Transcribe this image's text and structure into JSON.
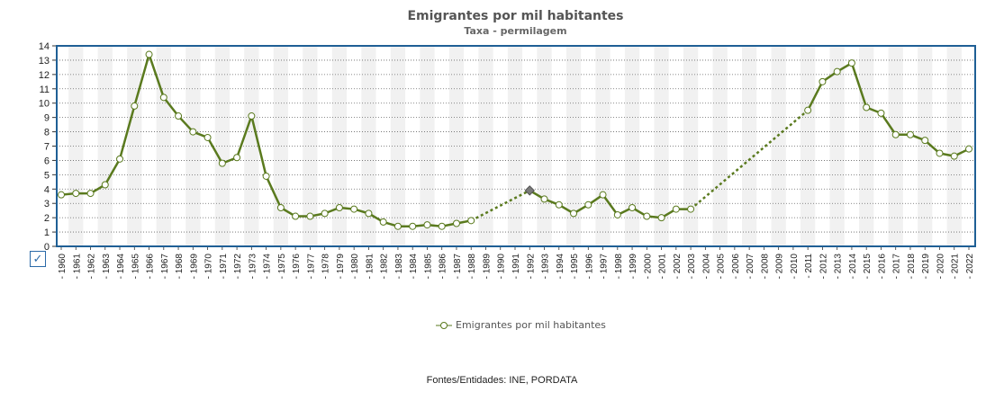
{
  "chart_title": "Emigrantes por mil habitantes",
  "chart_subtitle": "Taxa - permilagem",
  "source": "Fontes/Entidades: INE, PORDATA",
  "check_icon": "✓",
  "colors": {
    "series": "#5a7a1e",
    "frame": "#1f5f95",
    "marker_fill": "#ffffff",
    "missing_marker": "#7a7a7a",
    "band": "#f1f1f1"
  },
  "chart_data": {
    "type": "line",
    "title": "Emigrantes por mil habitantes",
    "subtitle": "Taxa - permilagem",
    "ylim": [
      0,
      14
    ],
    "yticks": [
      0,
      1,
      2,
      3,
      4,
      5,
      6,
      7,
      8,
      9,
      10,
      11,
      12,
      13,
      14
    ],
    "grid": true,
    "legend_position": "bottom-center",
    "categories": [
      "1960",
      "1961",
      "1962",
      "1963",
      "1964",
      "1965",
      "1966",
      "1967",
      "1968",
      "1969",
      "1970",
      "1971",
      "1972",
      "1973",
      "1974",
      "1975",
      "1976",
      "1977",
      "1978",
      "1979",
      "1980",
      "1981",
      "1982",
      "1983",
      "1984",
      "1985",
      "1986",
      "1987",
      "1988",
      "1989",
      "1990",
      "1991",
      "1992",
      "1993",
      "1994",
      "1995",
      "1996",
      "1997",
      "1998",
      "1999",
      "2000",
      "2001",
      "2002",
      "2003",
      "2004",
      "2005",
      "2006",
      "2007",
      "2008",
      "2009",
      "2010",
      "2011",
      "2012",
      "2013",
      "2014",
      "2015",
      "2016",
      "2017",
      "2018",
      "2019",
      "2020",
      "2021",
      "2022"
    ],
    "series": [
      {
        "name": "Emigrantes por mil habitantes",
        "values": [
          3.6,
          3.7,
          3.7,
          4.3,
          6.1,
          9.8,
          13.4,
          10.4,
          9.1,
          8.0,
          7.6,
          5.8,
          6.2,
          9.1,
          4.9,
          2.7,
          2.1,
          2.1,
          2.3,
          2.7,
          2.6,
          2.3,
          1.7,
          1.4,
          1.4,
          1.5,
          1.4,
          1.6,
          1.8,
          null,
          null,
          null,
          3.9,
          3.3,
          2.9,
          2.3,
          2.9,
          3.6,
          2.2,
          2.7,
          2.1,
          2.0,
          2.6,
          2.6,
          null,
          null,
          null,
          null,
          null,
          null,
          null,
          9.5,
          11.5,
          12.2,
          12.8,
          9.7,
          9.3,
          7.8,
          7.8,
          7.4,
          6.5,
          6.3,
          6.8
        ]
      }
    ]
  }
}
